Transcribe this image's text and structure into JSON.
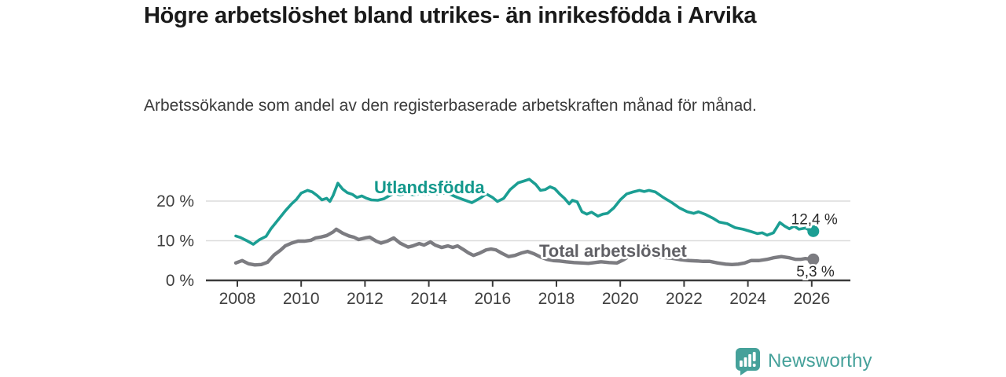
{
  "header": {
    "title": "Högre arbetslöshet bland utrikes- än inrikesfödda i Arvika",
    "subtitle": "Arbetssökande som andel av den registerbaserade arbetskraften månad för månad."
  },
  "chart_data": {
    "type": "line",
    "title": "Högre arbetslöshet bland utrikes- än inrikesfödda i Arvika",
    "xlabel": "",
    "ylabel": "",
    "x_axis": {
      "ticks": [
        2008,
        2010,
        2012,
        2014,
        2016,
        2018,
        2020,
        2022,
        2024,
        2026
      ],
      "tick_labels": [
        "2008",
        "2010",
        "2012",
        "2014",
        "2016",
        "2018",
        "2020",
        "2022",
        "2024",
        "2026"
      ],
      "range": [
        2007.9,
        2027.2
      ]
    },
    "y_axis": {
      "ticks": [
        0,
        10,
        20
      ],
      "tick_labels": [
        "0 %",
        "10 %",
        "20 %"
      ],
      "range": [
        0,
        27
      ],
      "grid": true
    },
    "legend_position": "inline-labels",
    "series": [
      {
        "name": "Utlandsfödda",
        "color": "#1b9e93",
        "label_color": "#13988c",
        "end_label": "12,4 %",
        "end_value": 12.4,
        "points": [
          [
            2007.95,
            11.2
          ],
          [
            2008.1,
            10.8
          ],
          [
            2008.3,
            10.0
          ],
          [
            2008.5,
            9.1
          ],
          [
            2008.7,
            10.3
          ],
          [
            2008.9,
            11.1
          ],
          [
            2009.05,
            13.0
          ],
          [
            2009.3,
            15.5
          ],
          [
            2009.5,
            17.5
          ],
          [
            2009.7,
            19.3
          ],
          [
            2009.85,
            20.4
          ],
          [
            2010.0,
            22.0
          ],
          [
            2010.2,
            22.7
          ],
          [
            2010.35,
            22.3
          ],
          [
            2010.5,
            21.4
          ],
          [
            2010.65,
            20.3
          ],
          [
            2010.8,
            20.7
          ],
          [
            2010.9,
            19.9
          ],
          [
            2011.0,
            21.4
          ],
          [
            2011.15,
            24.5
          ],
          [
            2011.3,
            23.0
          ],
          [
            2011.45,
            22.1
          ],
          [
            2011.6,
            21.7
          ],
          [
            2011.75,
            20.9
          ],
          [
            2011.9,
            21.3
          ],
          [
            2012.05,
            20.7
          ],
          [
            2012.2,
            20.3
          ],
          [
            2012.4,
            20.2
          ],
          [
            2012.6,
            20.6
          ],
          [
            2012.75,
            21.3
          ],
          [
            2012.9,
            21.9
          ],
          [
            2013.1,
            21.6
          ],
          [
            2013.3,
            21.9
          ],
          [
            2013.5,
            21.6
          ],
          [
            2013.7,
            21.9
          ],
          [
            2013.9,
            21.7
          ],
          [
            2014.1,
            22.0
          ],
          [
            2014.3,
            21.8
          ],
          [
            2014.5,
            22.0
          ],
          [
            2014.7,
            21.6
          ],
          [
            2014.9,
            20.9
          ],
          [
            2015.1,
            20.3
          ],
          [
            2015.35,
            19.6
          ],
          [
            2015.6,
            20.7
          ],
          [
            2015.8,
            21.8
          ],
          [
            2016.0,
            20.9
          ],
          [
            2016.15,
            19.9
          ],
          [
            2016.35,
            20.7
          ],
          [
            2016.55,
            22.9
          ],
          [
            2016.8,
            24.6
          ],
          [
            2017.0,
            25.1
          ],
          [
            2017.15,
            25.5
          ],
          [
            2017.35,
            24.2
          ],
          [
            2017.5,
            22.7
          ],
          [
            2017.65,
            22.9
          ],
          [
            2017.8,
            23.6
          ],
          [
            2017.95,
            23.1
          ],
          [
            2018.1,
            21.8
          ],
          [
            2018.25,
            20.7
          ],
          [
            2018.4,
            19.3
          ],
          [
            2018.5,
            20.2
          ],
          [
            2018.65,
            19.8
          ],
          [
            2018.8,
            17.3
          ],
          [
            2018.95,
            16.7
          ],
          [
            2019.1,
            17.2
          ],
          [
            2019.3,
            16.2
          ],
          [
            2019.45,
            16.7
          ],
          [
            2019.6,
            16.9
          ],
          [
            2019.8,
            18.3
          ],
          [
            2020.0,
            20.3
          ],
          [
            2020.2,
            21.8
          ],
          [
            2020.4,
            22.3
          ],
          [
            2020.6,
            22.7
          ],
          [
            2020.75,
            22.4
          ],
          [
            2020.9,
            22.7
          ],
          [
            2021.1,
            22.3
          ],
          [
            2021.35,
            20.9
          ],
          [
            2021.6,
            19.7
          ],
          [
            2021.85,
            18.3
          ],
          [
            2022.1,
            17.3
          ],
          [
            2022.3,
            16.9
          ],
          [
            2022.45,
            17.3
          ],
          [
            2022.65,
            16.7
          ],
          [
            2022.9,
            15.7
          ],
          [
            2023.1,
            14.7
          ],
          [
            2023.35,
            14.3
          ],
          [
            2023.6,
            13.3
          ],
          [
            2023.85,
            12.9
          ],
          [
            2024.1,
            12.3
          ],
          [
            2024.3,
            11.8
          ],
          [
            2024.45,
            12.0
          ],
          [
            2024.6,
            11.4
          ],
          [
            2024.8,
            12.0
          ],
          [
            2025.0,
            14.6
          ],
          [
            2025.15,
            13.7
          ],
          [
            2025.3,
            13.0
          ],
          [
            2025.45,
            13.7
          ],
          [
            2025.6,
            12.9
          ],
          [
            2025.8,
            13.2
          ],
          [
            2026.0,
            12.4
          ]
        ]
      },
      {
        "name": "Total arbetslöshet",
        "color": "#7c7c81",
        "label_color": "#606065",
        "end_label": "5,3 %",
        "end_value": 5.3,
        "points": [
          [
            2007.95,
            4.4
          ],
          [
            2008.15,
            5.0
          ],
          [
            2008.35,
            4.2
          ],
          [
            2008.55,
            3.9
          ],
          [
            2008.75,
            4.0
          ],
          [
            2008.95,
            4.6
          ],
          [
            2009.15,
            6.4
          ],
          [
            2009.35,
            7.6
          ],
          [
            2009.5,
            8.7
          ],
          [
            2009.7,
            9.4
          ],
          [
            2009.9,
            9.9
          ],
          [
            2010.1,
            9.9
          ],
          [
            2010.3,
            10.1
          ],
          [
            2010.45,
            10.7
          ],
          [
            2010.6,
            10.9
          ],
          [
            2010.8,
            11.3
          ],
          [
            2011.0,
            12.2
          ],
          [
            2011.1,
            12.9
          ],
          [
            2011.3,
            11.9
          ],
          [
            2011.5,
            11.2
          ],
          [
            2011.65,
            10.9
          ],
          [
            2011.8,
            10.3
          ],
          [
            2012.0,
            10.7
          ],
          [
            2012.15,
            10.9
          ],
          [
            2012.35,
            9.9
          ],
          [
            2012.5,
            9.4
          ],
          [
            2012.7,
            9.9
          ],
          [
            2012.9,
            10.7
          ],
          [
            2013.1,
            9.4
          ],
          [
            2013.35,
            8.4
          ],
          [
            2013.5,
            8.7
          ],
          [
            2013.7,
            9.3
          ],
          [
            2013.85,
            8.9
          ],
          [
            2014.05,
            9.7
          ],
          [
            2014.2,
            8.9
          ],
          [
            2014.4,
            8.3
          ],
          [
            2014.6,
            8.7
          ],
          [
            2014.75,
            8.3
          ],
          [
            2014.9,
            8.7
          ],
          [
            2015.1,
            7.7
          ],
          [
            2015.25,
            6.9
          ],
          [
            2015.4,
            6.3
          ],
          [
            2015.6,
            6.9
          ],
          [
            2015.8,
            7.7
          ],
          [
            2015.95,
            7.9
          ],
          [
            2016.1,
            7.7
          ],
          [
            2016.3,
            6.8
          ],
          [
            2016.5,
            6.0
          ],
          [
            2016.7,
            6.3
          ],
          [
            2016.9,
            6.9
          ],
          [
            2017.1,
            7.3
          ],
          [
            2017.3,
            6.7
          ],
          [
            2017.5,
            5.9
          ],
          [
            2017.7,
            5.3
          ],
          [
            2017.9,
            5.0
          ],
          [
            2018.1,
            4.9
          ],
          [
            2018.3,
            4.7
          ],
          [
            2018.55,
            4.5
          ],
          [
            2018.8,
            4.4
          ],
          [
            2019.0,
            4.3
          ],
          [
            2019.2,
            4.5
          ],
          [
            2019.4,
            4.7
          ],
          [
            2019.65,
            4.5
          ],
          [
            2019.9,
            4.4
          ],
          [
            2020.1,
            5.2
          ],
          [
            2020.3,
            6.2
          ],
          [
            2020.5,
            6.6
          ],
          [
            2020.7,
            6.4
          ],
          [
            2020.9,
            6.2
          ],
          [
            2021.1,
            6.0
          ],
          [
            2021.3,
            5.8
          ],
          [
            2021.6,
            5.6
          ],
          [
            2021.9,
            5.2
          ],
          [
            2022.15,
            5.0
          ],
          [
            2022.4,
            4.9
          ],
          [
            2022.6,
            4.8
          ],
          [
            2022.8,
            4.8
          ],
          [
            2023.05,
            4.4
          ],
          [
            2023.3,
            4.1
          ],
          [
            2023.5,
            4.0
          ],
          [
            2023.7,
            4.1
          ],
          [
            2023.9,
            4.4
          ],
          [
            2024.1,
            5.0
          ],
          [
            2024.35,
            5.0
          ],
          [
            2024.6,
            5.3
          ],
          [
            2024.8,
            5.7
          ],
          [
            2025.05,
            6.0
          ],
          [
            2025.3,
            5.7
          ],
          [
            2025.5,
            5.3
          ],
          [
            2025.65,
            5.3
          ],
          [
            2025.8,
            5.5
          ],
          [
            2026.0,
            5.3
          ]
        ]
      }
    ]
  },
  "footer": {
    "brand": "Newsworthy",
    "brand_color": "#45a19a"
  },
  "colors": {
    "accent_teal": "#1b9e93",
    "line_gray": "#7c7c81",
    "axis": "#3a3a3a",
    "grid": "#dcdcdc",
    "title_text": "#1a1a1a",
    "value_label_text": "#2a2a2a"
  }
}
